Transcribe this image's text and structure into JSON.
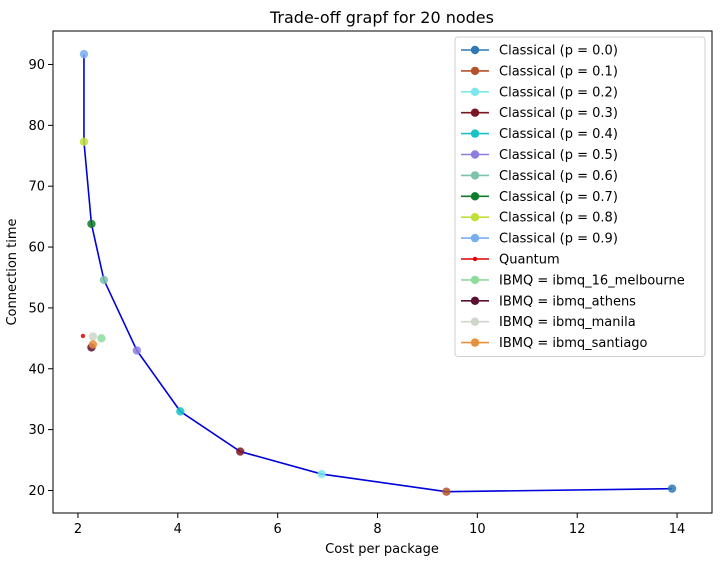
{
  "chart_data": {
    "type": "scatter",
    "title": "Trade-off grapf for 20 nodes",
    "xlabel": "Cost per package",
    "ylabel": "Connection time",
    "xlim": [
      1.5,
      14.7
    ],
    "ylim": [
      16.3,
      95.5
    ],
    "xticks": [
      2,
      4,
      6,
      8,
      10,
      12,
      14
    ],
    "yticks": [
      20,
      30,
      40,
      50,
      60,
      70,
      80,
      90
    ],
    "grid": false,
    "legend_position": "top-right",
    "frontier": {
      "color": "#0000dd",
      "points": [
        [
          2.12,
          91.7
        ],
        [
          2.12,
          77.3
        ],
        [
          2.27,
          63.8
        ],
        [
          2.52,
          54.6
        ],
        [
          3.18,
          43.0
        ],
        [
          4.05,
          33.0
        ],
        [
          5.25,
          26.4
        ],
        [
          6.88,
          22.7
        ],
        [
          9.38,
          19.8
        ],
        [
          13.9,
          20.3
        ]
      ]
    },
    "series": [
      {
        "name": "Classical (p = 0.0)",
        "color": "#2e7ab5",
        "marker": "line-dot",
        "x": [
          13.9
        ],
        "y": [
          20.3
        ]
      },
      {
        "name": "Classical (p = 0.1)",
        "color": "#b5522a",
        "marker": "line-dot",
        "x": [
          9.38
        ],
        "y": [
          19.8
        ]
      },
      {
        "name": "Classical (p = 0.2)",
        "color": "#7ee6ec",
        "marker": "line-dot",
        "x": [
          6.88
        ],
        "y": [
          22.7
        ]
      },
      {
        "name": "Classical (p = 0.3)",
        "color": "#7a1722",
        "marker": "line-dot",
        "x": [
          5.25
        ],
        "y": [
          26.4
        ]
      },
      {
        "name": "Classical (p = 0.4)",
        "color": "#19c2c6",
        "marker": "line-dot",
        "x": [
          4.05
        ],
        "y": [
          33.0
        ]
      },
      {
        "name": "Classical (p = 0.5)",
        "color": "#8c7de0",
        "marker": "line-dot",
        "x": [
          3.18
        ],
        "y": [
          43.0
        ]
      },
      {
        "name": "Classical (p = 0.6)",
        "color": "#7cc2ad",
        "marker": "line-dot",
        "x": [
          2.52
        ],
        "y": [
          54.6
        ]
      },
      {
        "name": "Classical (p = 0.7)",
        "color": "#0f7a2a",
        "marker": "line-dot",
        "x": [
          2.27
        ],
        "y": [
          63.8
        ]
      },
      {
        "name": "Classical (p = 0.8)",
        "color": "#c0e039",
        "marker": "line-dot",
        "x": [
          2.12
        ],
        "y": [
          77.3
        ]
      },
      {
        "name": "Classical (p = 0.9)",
        "color": "#78aef0",
        "marker": "line-dot",
        "x": [
          2.12
        ],
        "y": [
          91.7
        ]
      },
      {
        "name": "Quantum",
        "color": "#e00000",
        "marker": "line-smalldot",
        "x": [
          2.1
        ],
        "y": [
          45.4
        ]
      },
      {
        "name": "IBMQ = ibmq_16_melbourne",
        "color": "#8edc9c",
        "marker": "line-dot",
        "x": [
          2.47
        ],
        "y": [
          45.0
        ]
      },
      {
        "name": "IBMQ = ibmq_athens",
        "color": "#5a1030",
        "marker": "line-dot",
        "x": [
          2.27
        ],
        "y": [
          43.5
        ]
      },
      {
        "name": "IBMQ = ibmq_manila",
        "color": "#cfd6cc",
        "marker": "line-dot",
        "x": [
          2.3
        ],
        "y": [
          45.3
        ]
      },
      {
        "name": "IBMQ = ibmq_santiago",
        "color": "#e8913c",
        "marker": "line-dot",
        "x": [
          2.3
        ],
        "y": [
          44.0
        ]
      }
    ]
  }
}
